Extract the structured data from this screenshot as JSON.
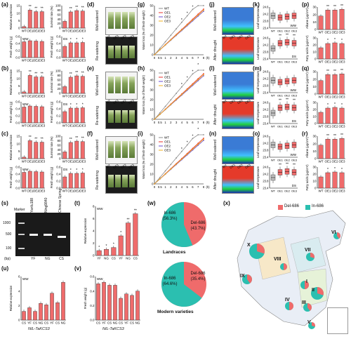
{
  "colors": {
    "bar": "#ef6b6b",
    "wt": "#8c8c8c",
    "oe1": "#e8322e",
    "oe2": "#6a4bd0",
    "oe3": "#f0b21c",
    "del686": "#ef6b6b",
    "in686": "#2bbfb0"
  },
  "panels": {
    "a": "(a)",
    "b": "(b)",
    "c": "(c)",
    "d": "(d)",
    "e": "(e)",
    "f": "(f)",
    "g": "(g)",
    "h": "(h)",
    "i": "(i)",
    "j": "(j)",
    "k": "(k)",
    "l": "(l)",
    "m": "(m)",
    "n": "(n)",
    "o": "(o)",
    "p": "(p)",
    "q": "(q)",
    "r": "(r)",
    "s": "(s)",
    "t": "(t)",
    "u": "(u)",
    "v": "(v)",
    "w": "(w)",
    "x": "(x)"
  },
  "labels": {
    "relative_expression": "Relative expression",
    "survival_rate": "Survival rate (%)",
    "fresh_weight": "Fresh weight (g)",
    "water_loss": "Water loss (% of fresh weight)",
    "leaf_temperature": "Leaf temperature",
    "alkane": "Alkane (µg/cm²)",
    "fatty_acids": "Fatty acids (µg/cm²)",
    "ww": "WW",
    "ds": "DS",
    "well_watered": "Well-watered",
    "re_watering": "Re-watering",
    "after_drought": "After drought",
    "hours": "(h)",
    "nil": "NIL-TaKCS3",
    "marker": "Marker",
    "bp": "(bp)"
  },
  "genotypes": [
    "WT",
    "OE1",
    "OE2",
    "OE3"
  ],
  "legend_ghi": [
    "WT",
    "OE1",
    "OE2",
    "OE3"
  ],
  "water_x_ticks": [
    "0",
    "0.5",
    "1",
    "2",
    "3",
    "4",
    "5",
    "6",
    "7",
    "8"
  ],
  "gel": {
    "lanes": [
      "Yanfu188",
      "Ning9840",
      "Chinese Spring"
    ],
    "lane_codes": [
      "YF",
      "NG",
      "CS"
    ],
    "bp": [
      "1000",
      "500",
      "100"
    ]
  },
  "t_x": [
    "YF",
    "NG",
    "CS",
    "YF",
    "NG",
    "CS"
  ],
  "u_x": [
    "CS",
    "YF",
    "CS",
    "NG",
    "CS",
    "YF",
    "CS",
    "NG"
  ],
  "v_x": [
    "CS",
    "YF",
    "CS",
    "NG",
    "CS",
    "YF",
    "CS",
    "NG"
  ],
  "pies": {
    "landraces": {
      "title": "Landraces",
      "in686": "In-686",
      "in686_pct": "(56.3%)",
      "del686": "Del-686",
      "del686_pct": "(43.7%)",
      "in_value": 56.3,
      "del_value": 43.7
    },
    "modern": {
      "title": "Modern varieties",
      "in686": "In-686",
      "in686_pct": "(64.6%)",
      "del686": "Del-686",
      "del686_pct": "(35.4%)",
      "in_value": 64.6,
      "del_value": 35.4
    }
  },
  "map": {
    "legend": [
      "Del-686",
      "In-686"
    ],
    "regions": [
      "I",
      "II",
      "III",
      "IV",
      "V",
      "VI",
      "VII",
      "VIII",
      "IX",
      "X"
    ]
  },
  "stars": {
    "one": "*",
    "two": "**"
  },
  "ytick_a_expr": [
    "0",
    "5",
    "10",
    "15"
  ],
  "ytick_surv": [
    "0",
    "20",
    "40",
    "60",
    "80",
    "100"
  ],
  "ytick_fw": [
    "0.0",
    "0.2",
    "0.4",
    "0.6"
  ],
  "ytick_wl": [
    "0",
    "10",
    "20",
    "30",
    "40",
    "50"
  ],
  "ytick_lt": [
    "23.4",
    "23.8",
    "24.2",
    "24.6"
  ],
  "ytick_alk": [
    "0",
    "10",
    "20",
    "30"
  ],
  "ytick_fa": [
    "0",
    "10",
    "20",
    "30"
  ],
  "ytick_t": [
    "0",
    "2",
    "4",
    "6",
    "8"
  ],
  "ytick_u": [
    "0",
    "2",
    "4",
    "6"
  ],
  "ytick_v": [
    "0.0",
    "0.2",
    "0.4",
    "0.6"
  ]
}
